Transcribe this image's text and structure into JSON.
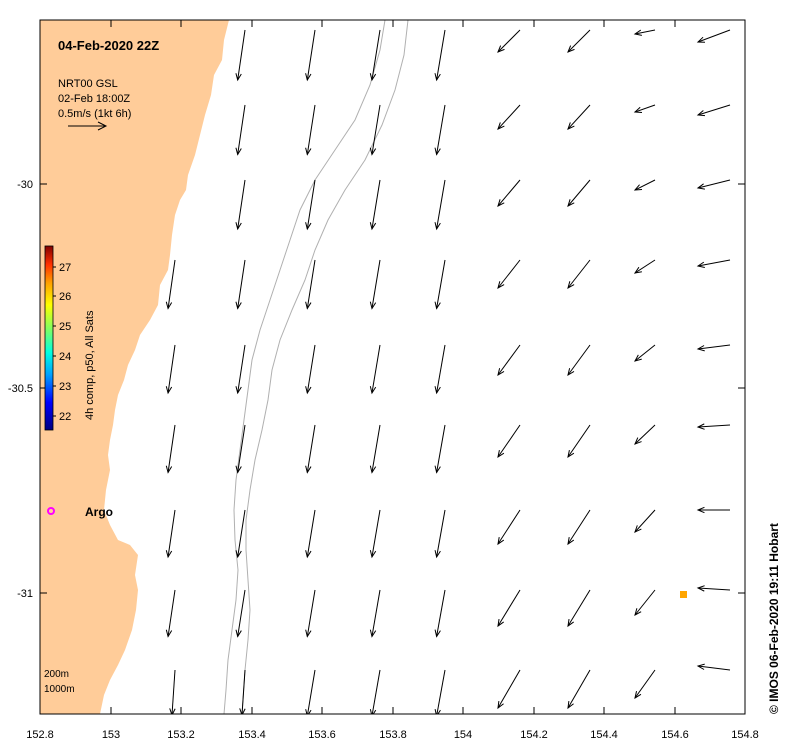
{
  "title": "04-Feb-2020 22Z",
  "product": {
    "line1": "NRT00 GSL",
    "line2": "02-Feb 18:00Z",
    "scale_label": "0.5m/s (1kt 6h)"
  },
  "colorbar": {
    "label": "4h comp, p50, All Sats",
    "ticks": [
      "22",
      "23",
      "24",
      "25",
      "26",
      "27"
    ],
    "colors": [
      "#000080",
      "#0000ff",
      "#00a0ff",
      "#00ffe0",
      "#80ff60",
      "#ffff00",
      "#ffa000",
      "#ff3000",
      "#800000"
    ]
  },
  "x_axis": {
    "ticks": [
      "152.8",
      "153",
      "153.2",
      "153.4",
      "153.6",
      "153.8",
      "154",
      "154.2",
      "154.4",
      "154.6",
      "154.8"
    ]
  },
  "y_axis": {
    "ticks": [
      "-30",
      "-30.5",
      "-31"
    ]
  },
  "argo": {
    "label": "Argo",
    "color": "#ff00ff"
  },
  "marker_color": "#ffa500",
  "land_color": "#ffcc99",
  "depth_legend": {
    "line1": "200m",
    "line2": "1000m"
  },
  "credit": "© IMOS 06-Feb-2020 19:11 Hobart"
}
